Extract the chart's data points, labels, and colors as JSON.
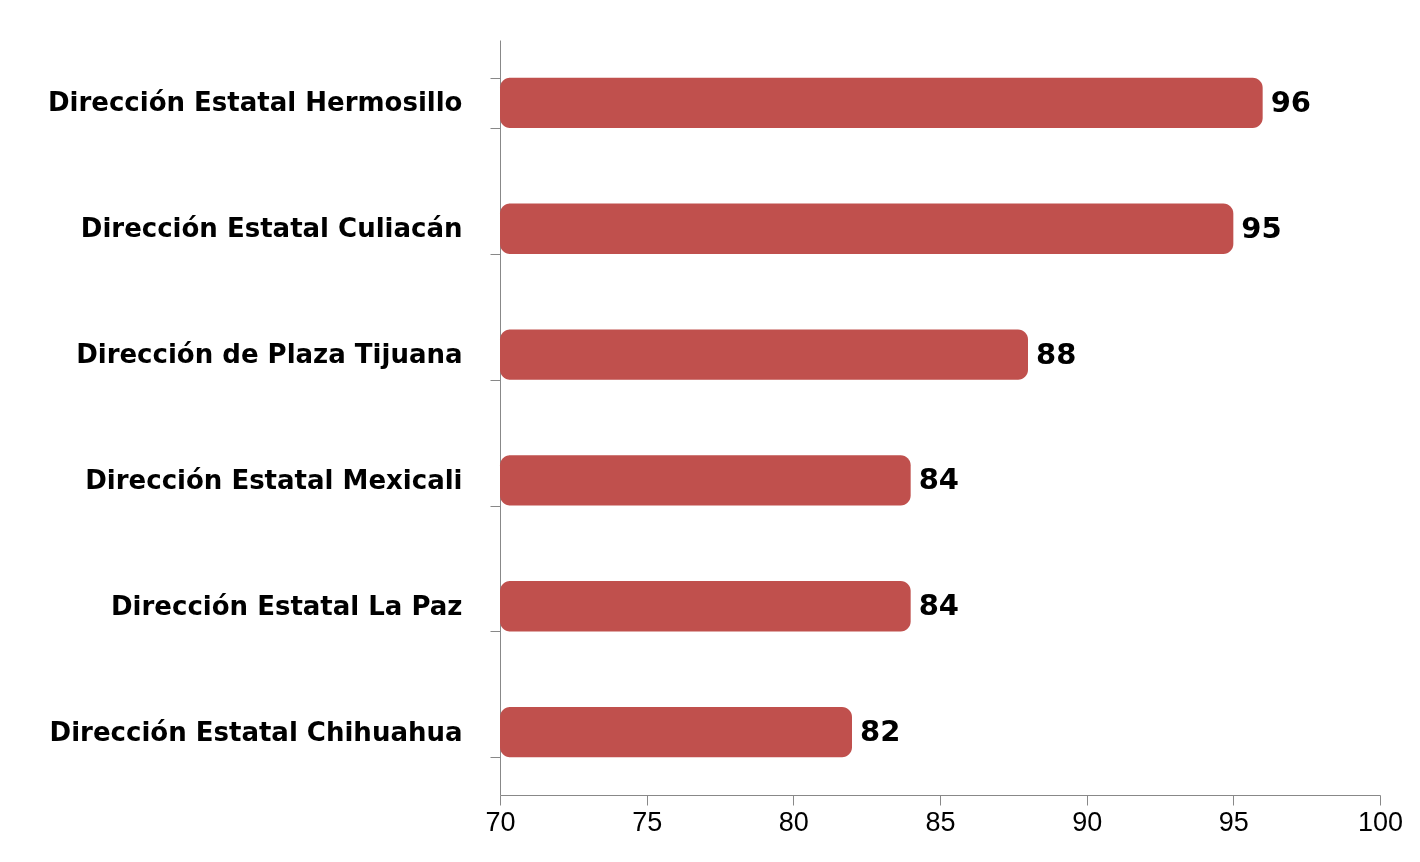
{
  "chart_data": {
    "type": "bar",
    "orientation": "horizontal",
    "categories": [
      "Dirección Estatal Hermosillo",
      "Dirección Estatal Culiacán",
      "Dirección de Plaza Tijuana",
      "Dirección Estatal Mexicali",
      "Dirección Estatal La Paz",
      "Dirección Estatal Chihuahua"
    ],
    "values": [
      96,
      95,
      88,
      84,
      84,
      82
    ],
    "color": "#c0504d",
    "xlim": [
      70,
      100
    ],
    "xticks": [
      70,
      75,
      80,
      85,
      90,
      95,
      100
    ],
    "data_labels": true,
    "grid": false
  }
}
